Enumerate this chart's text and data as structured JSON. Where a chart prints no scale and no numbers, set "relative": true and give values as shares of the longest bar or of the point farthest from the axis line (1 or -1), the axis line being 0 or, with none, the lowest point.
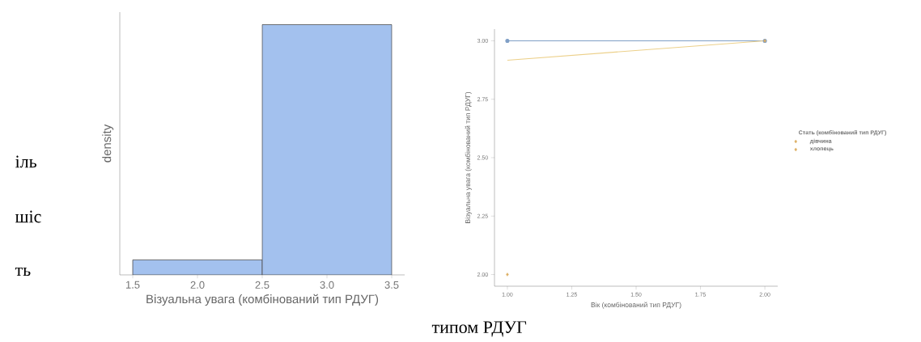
{
  "chart_data": [
    {
      "type": "bar",
      "x": [
        2.0,
        3.0
      ],
      "values": [
        0.06,
        1
      ],
      "relative": true,
      "color": "#a3c1ee",
      "xlabel": "Візуальна увага (комбінований тип РДУГ)",
      "ylabel": "density",
      "xlim": [
        1.4,
        3.6
      ],
      "xticks": [
        {
          "value": 1.5,
          "label": "1.5"
        },
        {
          "value": 2.0,
          "label": "2.0"
        },
        {
          "value": 2.5,
          "label": "2.5"
        },
        {
          "value": 3.0,
          "label": "3.0"
        },
        {
          "value": 3.5,
          "label": "3.5"
        }
      ],
      "grid": false,
      "annotations": [
        "іль",
        "шіс",
        "ть"
      ]
    },
    {
      "type": "line",
      "xlabel": "Вік (комбінований тип РДУГ)",
      "ylabel": "Візуальна увага (комбінований тип РДУГ)",
      "legend_title": "Стать (комбінований тип РДУГ)",
      "legend": "right",
      "grid": false,
      "x": [
        1,
        2
      ],
      "xlim": [
        0.95,
        2.05
      ],
      "ylim": [
        1.95,
        3.05
      ],
      "xticks": [
        {
          "value": 1,
          "label": "1.00"
        },
        {
          "value": 1.25,
          "label": "1.25"
        },
        {
          "value": 1.5,
          "label": "1.50"
        },
        {
          "value": 1.75,
          "label": "1.75"
        },
        {
          "value": 2,
          "label": "2.00"
        }
      ],
      "yticks": [
        {
          "value": 2,
          "label": "2.00"
        },
        {
          "value": 2.25,
          "label": "2.25"
        },
        {
          "value": 2.5,
          "label": "2.50"
        },
        {
          "value": 2.75,
          "label": "2.75"
        },
        {
          "value": 3,
          "label": "3.00"
        }
      ],
      "series": [
        {
          "type": "line",
          "color": "#7f9fc6",
          "marker": "circle",
          "values": [
            3.0,
            3.0
          ]
        },
        {
          "type": "line",
          "color": "#ecd08a",
          "marker": "none",
          "values": [
            2.917,
            3.0
          ]
        },
        {
          "name": "дівчина",
          "type": "scatter",
          "color": "#dcae62",
          "marker": "diamond",
          "x": [
            1
          ],
          "values": [
            2.0
          ]
        },
        {
          "name": "хлопець",
          "type": "scatter",
          "color": "#dcae62",
          "marker": "diamond",
          "x": [
            2
          ],
          "values": [
            3.0
          ]
        }
      ],
      "annotations": [
        "типом РДУГ"
      ]
    }
  ]
}
